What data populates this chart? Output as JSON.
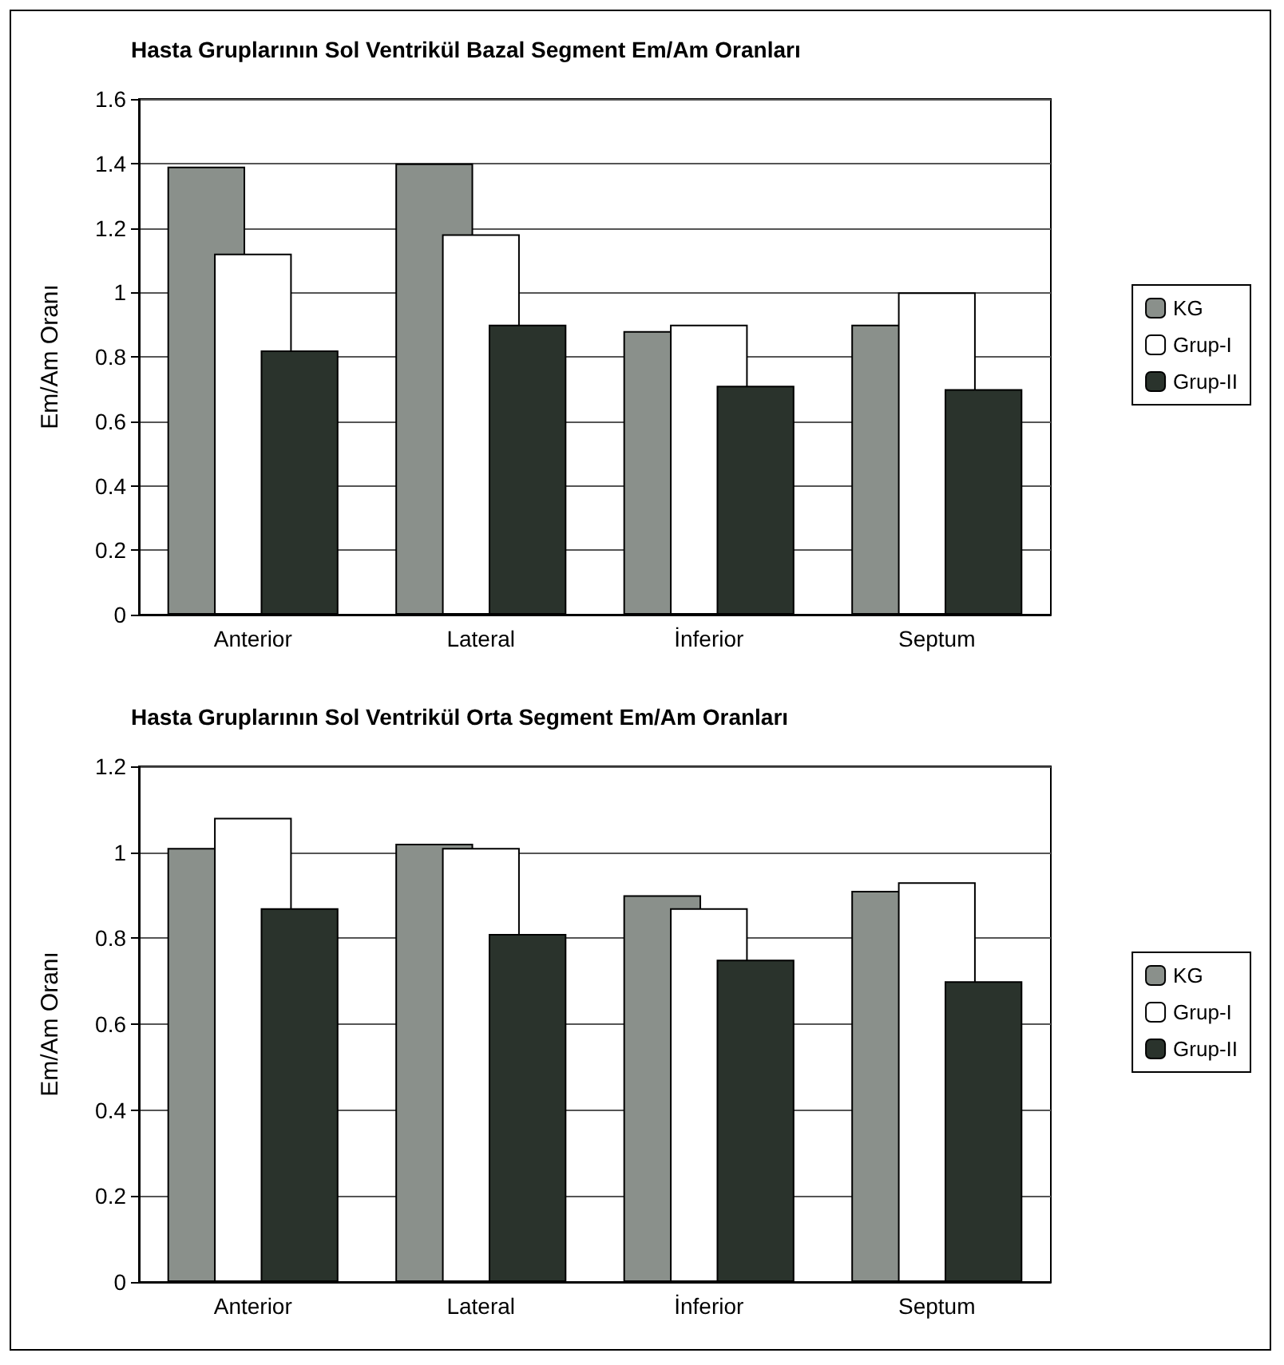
{
  "chart_data": [
    {
      "type": "bar",
      "title": "Hasta Gruplarının Sol Ventrikül Bazal Segment Em/Am Oranları",
      "ylabel": "Em/Am Oranı",
      "categories": [
        "Anterior",
        "Lateral",
        "İnferior",
        "Septum"
      ],
      "series": [
        {
          "name": "KG",
          "color": "#8a908b",
          "values": [
            1.39,
            1.4,
            0.88,
            0.9
          ]
        },
        {
          "name": "Grup-I",
          "color": "#ffffff",
          "values": [
            1.12,
            1.18,
            0.9,
            1.0
          ]
        },
        {
          "name": "Grup-II",
          "color": "#2a332c",
          "values": [
            0.82,
            0.9,
            0.71,
            0.7
          ]
        }
      ],
      "ylim": [
        0,
        1.6
      ],
      "yticks": [
        0,
        0.2,
        0.4,
        0.6,
        0.8,
        1,
        1.2,
        1.4,
        1.6
      ],
      "grid": "y",
      "legend": "right"
    },
    {
      "type": "bar",
      "title": "Hasta Gruplarının Sol Ventrikül Orta Segment Em/Am Oranları",
      "ylabel": "Em/Am Oranı",
      "categories": [
        "Anterior",
        "Lateral",
        "İnferior",
        "Septum"
      ],
      "series": [
        {
          "name": "KG",
          "color": "#8a908b",
          "values": [
            1.01,
            1.02,
            0.9,
            0.91
          ]
        },
        {
          "name": "Grup-I",
          "color": "#ffffff",
          "values": [
            1.08,
            1.01,
            0.87,
            0.93
          ]
        },
        {
          "name": "Grup-II",
          "color": "#2a332c",
          "values": [
            0.87,
            0.81,
            0.75,
            0.7
          ]
        }
      ],
      "ylim": [
        0,
        1.2
      ],
      "yticks": [
        0,
        0.2,
        0.4,
        0.6,
        0.8,
        1,
        1.2
      ],
      "grid": "y",
      "legend": "right"
    }
  ]
}
